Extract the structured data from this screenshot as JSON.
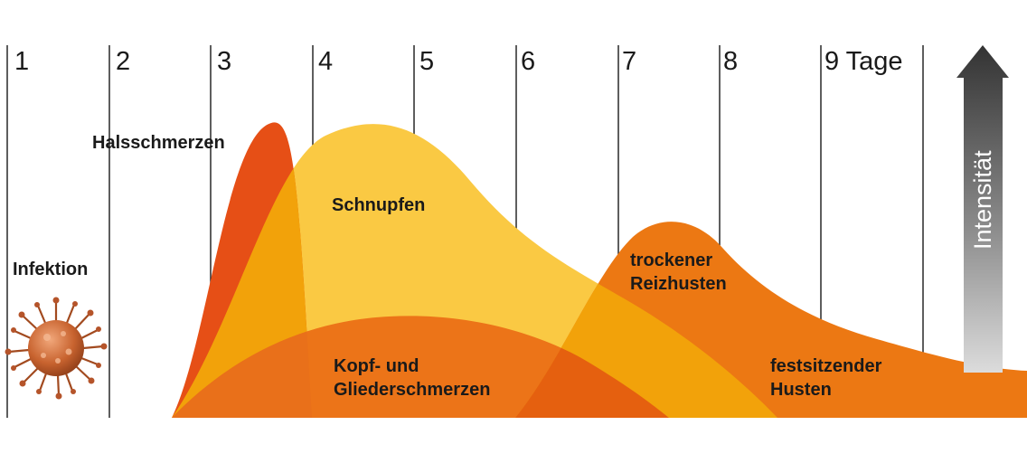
{
  "days": [
    "1",
    "2",
    "3",
    "4",
    "5",
    "6",
    "7",
    "8",
    "9 Tage"
  ],
  "intensity_label": "Intensität",
  "labels": {
    "infektion": "Infektion",
    "halsschmerzen": "Halsschmerzen",
    "schnupfen": "Schnupfen",
    "trockener_line1": "trockener",
    "trockener_line2": "Reizhusten",
    "kopf_line1": "Kopf- und",
    "kopf_line2": "Gliederschmerzen",
    "fest_line1": "festsitzender",
    "fest_line2": "Husten"
  },
  "colors": {
    "hals": "#e64f16",
    "schnupfen": "#fac943",
    "kopf": "#e8661d",
    "husten": "#ec7813",
    "overlap": "#f2a20a",
    "gridline": "#1a1a1a",
    "arrow_top": "#3a3a3a",
    "arrow_bottom": "#d8d8d8",
    "virus": "#c8632f"
  }
}
